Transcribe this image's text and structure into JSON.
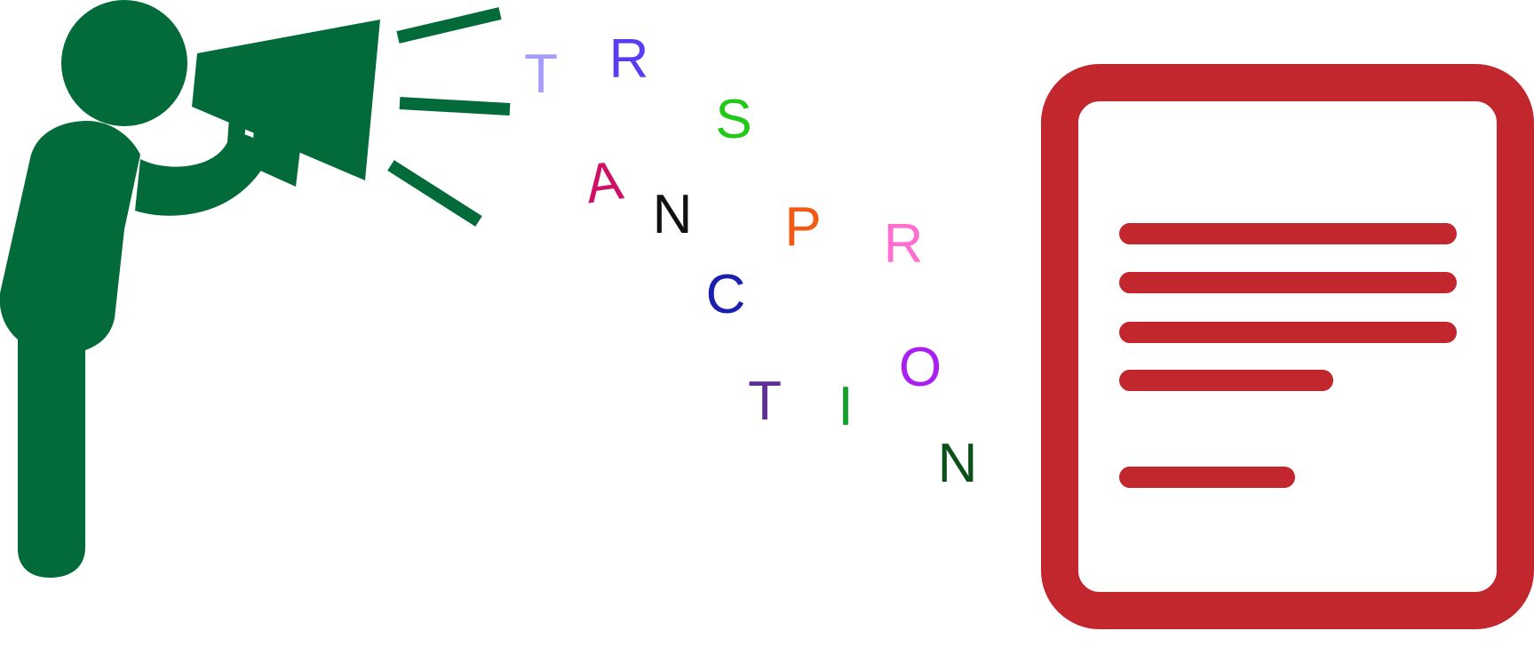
{
  "figure": {
    "speaker_icon": "person-with-megaphone-icon",
    "document_icon": "text-document-icon",
    "sound_lines_icon": "sound-waves-icon"
  },
  "letters": [
    {
      "char": "T",
      "color": "#a69cfc"
    },
    {
      "char": "R",
      "color": "#5a3cf2"
    },
    {
      "char": "S",
      "color": "#22c918"
    },
    {
      "char": "A",
      "color": "#cf1166"
    },
    {
      "char": "N",
      "color": "#111111"
    },
    {
      "char": "P",
      "color": "#f25b15"
    },
    {
      "char": "R",
      "color": "#ff6fcf"
    },
    {
      "char": "C",
      "color": "#1a1fad"
    },
    {
      "char": "T",
      "color": "#5d2f94"
    },
    {
      "char": "I",
      "color": "#11a12b"
    },
    {
      "char": "O",
      "color": "#aa1ff0"
    },
    {
      "char": "N",
      "color": "#0b4f19"
    }
  ],
  "colors": {
    "figure": "#036b3a",
    "document": "#c1272d",
    "background": "#ffffff"
  }
}
